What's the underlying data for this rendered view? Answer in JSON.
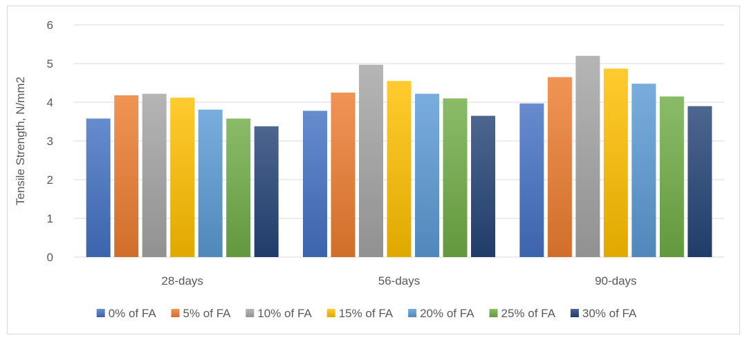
{
  "chart_data": {
    "type": "bar",
    "categories": [
      "28-days",
      "56-days",
      "90-days"
    ],
    "series": [
      {
        "name": "0% of FA",
        "color": "#4472c4",
        "values": [
          3.58,
          3.78,
          3.97
        ]
      },
      {
        "name": "5% of FA",
        "color": "#ed7d31",
        "values": [
          4.18,
          4.25,
          4.65
        ]
      },
      {
        "name": "10% of FA",
        "color": "#a5a5a5",
        "values": [
          4.22,
          4.97,
          5.2
        ]
      },
      {
        "name": "15% of FA",
        "color": "#ffc000",
        "values": [
          4.12,
          4.55,
          4.87
        ]
      },
      {
        "name": "20% of FA",
        "color": "#5b9bd5",
        "values": [
          3.81,
          4.22,
          4.48
        ]
      },
      {
        "name": "25% of FA",
        "color": "#70ad47",
        "values": [
          3.58,
          4.1,
          4.15
        ]
      },
      {
        "name": "30% of FA",
        "color": "#264478",
        "values": [
          3.38,
          3.65,
          3.9
        ]
      }
    ],
    "ylabel": "Tensile Strength, N/mm2",
    "xlabel": "",
    "ylim": [
      0,
      6
    ],
    "yticks": [
      0,
      1,
      2,
      3,
      4,
      5,
      6
    ],
    "grid": true,
    "legend": "bottom"
  }
}
